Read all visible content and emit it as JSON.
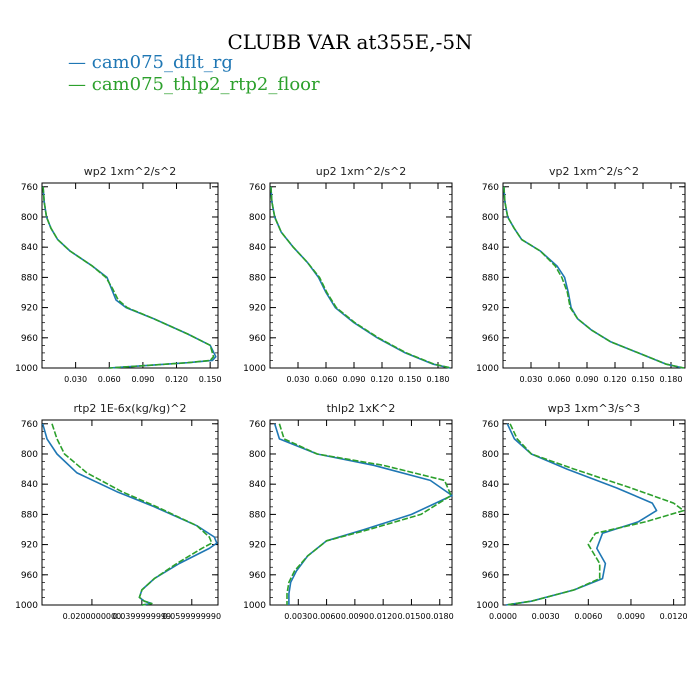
{
  "title": "CLUBB VAR at355E,-5N",
  "legend": {
    "items": [
      {
        "dash": "—",
        "label": "cam075_dflt_rg",
        "color": "#1f77b4"
      },
      {
        "dash": "—",
        "label": "cam075_thlp2_rtp2_floor",
        "color": "#2ca02c"
      }
    ]
  },
  "chart_data": [
    {
      "type": "line",
      "title": "wp2  1xm^2/s^2",
      "xticks": [
        "0.030",
        "0.060",
        "0.090",
        "0.120",
        "0.150"
      ],
      "xtick_values": [
        0.03,
        0.06,
        0.09,
        0.12,
        0.15
      ],
      "xlim": [
        0,
        0.157
      ],
      "yticks": [
        "760",
        "800",
        "840",
        "880",
        "920",
        "960",
        "1000"
      ],
      "ylim": [
        755,
        1000
      ],
      "series": [
        {
          "name": "cam075_dflt_rg",
          "color": "#1f77b4",
          "dashed": false,
          "x": [
            0.001,
            0.002,
            0.004,
            0.008,
            0.014,
            0.025,
            0.045,
            0.058,
            0.062,
            0.066,
            0.075,
            0.1,
            0.13,
            0.15,
            0.155,
            0.152,
            0.13,
            0.06
          ],
          "y": [
            760,
            780,
            800,
            815,
            830,
            845,
            865,
            880,
            895,
            910,
            920,
            935,
            955,
            970,
            985,
            990,
            993,
            1000
          ]
        },
        {
          "name": "cam075_thlp2_rtp2_floor",
          "color": "#2ca02c",
          "dashed": true,
          "x": [
            0.001,
            0.002,
            0.004,
            0.008,
            0.014,
            0.025,
            0.045,
            0.057,
            0.063,
            0.068,
            0.076,
            0.1,
            0.13,
            0.15,
            0.153,
            0.15,
            0.13,
            0.06
          ],
          "y": [
            760,
            780,
            800,
            815,
            830,
            845,
            865,
            880,
            895,
            910,
            920,
            935,
            955,
            970,
            985,
            990,
            993,
            1000
          ]
        }
      ]
    },
    {
      "type": "line",
      "title": "up2  1xm^2/s^2",
      "xticks": [
        "0.030",
        "0.060",
        "0.090",
        "0.120",
        "0.150",
        "0.180"
      ],
      "xtick_values": [
        0.03,
        0.06,
        0.09,
        0.12,
        0.15,
        0.18
      ],
      "xlim": [
        0,
        0.195
      ],
      "yticks": [
        "760",
        "800",
        "840",
        "880",
        "920",
        "960",
        "1000"
      ],
      "ylim": [
        755,
        1000
      ],
      "series": [
        {
          "name": "cam075_dflt_rg",
          "color": "#1f77b4",
          "dashed": false,
          "x": [
            0.001,
            0.002,
            0.005,
            0.012,
            0.025,
            0.04,
            0.052,
            0.06,
            0.07,
            0.09,
            0.115,
            0.145,
            0.175,
            0.193
          ],
          "y": [
            760,
            780,
            800,
            820,
            840,
            860,
            880,
            900,
            920,
            940,
            960,
            980,
            995,
            1000
          ]
        },
        {
          "name": "cam075_thlp2_rtp2_floor",
          "color": "#2ca02c",
          "dashed": true,
          "x": [
            0.001,
            0.002,
            0.005,
            0.012,
            0.025,
            0.04,
            0.053,
            0.061,
            0.071,
            0.091,
            0.116,
            0.146,
            0.176,
            0.194
          ],
          "y": [
            760,
            780,
            800,
            820,
            840,
            860,
            880,
            900,
            920,
            940,
            960,
            980,
            995,
            1000
          ]
        }
      ]
    },
    {
      "type": "line",
      "title": "vp2  1xm^2/s^2",
      "xticks": [
        "0.030",
        "0.060",
        "0.090",
        "0.120",
        "0.150",
        "0.180"
      ],
      "xtick_values": [
        0.03,
        0.06,
        0.09,
        0.12,
        0.15,
        0.18
      ],
      "xlim": [
        0,
        0.195
      ],
      "yticks": [
        "760",
        "800",
        "840",
        "880",
        "920",
        "960",
        "1000"
      ],
      "ylim": [
        755,
        1000
      ],
      "series": [
        {
          "name": "cam075_dflt_rg",
          "color": "#1f77b4",
          "dashed": false,
          "x": [
            0.001,
            0.002,
            0.005,
            0.012,
            0.02,
            0.04,
            0.058,
            0.066,
            0.07,
            0.073,
            0.08,
            0.095,
            0.115,
            0.145,
            0.175,
            0.193
          ],
          "y": [
            760,
            780,
            800,
            815,
            830,
            845,
            865,
            880,
            900,
            920,
            935,
            950,
            965,
            980,
            995,
            1000
          ]
        },
        {
          "name": "cam075_thlp2_rtp2_floor",
          "color": "#2ca02c",
          "dashed": true,
          "x": [
            0.001,
            0.002,
            0.005,
            0.012,
            0.02,
            0.04,
            0.056,
            0.063,
            0.069,
            0.072,
            0.08,
            0.095,
            0.115,
            0.145,
            0.175,
            0.194
          ],
          "y": [
            760,
            780,
            800,
            815,
            830,
            845,
            865,
            880,
            900,
            920,
            935,
            950,
            965,
            980,
            995,
            1000
          ]
        }
      ]
    },
    {
      "type": "line",
      "title": "rtp2  1E-6x(kg/kg)^2",
      "xticks": [
        "0.0200000000",
        "0.0399999999",
        "0.0599999990"
      ],
      "xtick_values": [
        0.02,
        0.04,
        0.06
      ],
      "xlim": [
        0,
        0.0705
      ],
      "yticks": [
        "760",
        "800",
        "840",
        "880",
        "920",
        "960",
        "1000"
      ],
      "ylim": [
        755,
        1000
      ],
      "series": [
        {
          "name": "cam075_dflt_rg",
          "color": "#1f77b4",
          "dashed": false,
          "x": [
            0.0003,
            0.002,
            0.006,
            0.014,
            0.03,
            0.045,
            0.062,
            0.069,
            0.07,
            0.067,
            0.055,
            0.045,
            0.04,
            0.039,
            0.041,
            0.044,
            0.04
          ],
          "y": [
            760,
            780,
            800,
            825,
            850,
            870,
            895,
            910,
            918,
            925,
            945,
            965,
            980,
            990,
            995,
            998,
            1000
          ]
        },
        {
          "name": "cam075_thlp2_rtp2_floor",
          "color": "#2ca02c",
          "dashed": true,
          "x": [
            0.004,
            0.006,
            0.009,
            0.018,
            0.032,
            0.046,
            0.062,
            0.067,
            0.068,
            0.064,
            0.054,
            0.045,
            0.04,
            0.039,
            0.041,
            0.044,
            0.04
          ],
          "y": [
            760,
            780,
            800,
            825,
            850,
            870,
            895,
            910,
            918,
            925,
            945,
            965,
            980,
            990,
            995,
            998,
            1000
          ]
        }
      ]
    },
    {
      "type": "line",
      "title": "thlp2  1xK^2",
      "xticks": [
        "0.0030",
        "0.0060",
        "0.0090",
        "0.0120",
        "0.0150",
        "0.0180"
      ],
      "xtick_values": [
        0.003,
        0.006,
        0.009,
        0.012,
        0.015,
        0.018
      ],
      "xlim": [
        0,
        0.0193
      ],
      "yticks": [
        "760",
        "800",
        "840",
        "880",
        "920",
        "960",
        "1000"
      ],
      "ylim": [
        755,
        1000
      ],
      "series": [
        {
          "name": "cam075_dflt_rg",
          "color": "#1f77b4",
          "dashed": false,
          "x": [
            0.0005,
            0.001,
            0.005,
            0.011,
            0.017,
            0.0193,
            0.015,
            0.01,
            0.006,
            0.004,
            0.0028,
            0.0022,
            0.002,
            0.002
          ],
          "y": [
            760,
            780,
            800,
            815,
            835,
            855,
            880,
            900,
            915,
            935,
            955,
            970,
            985,
            1000
          ]
        },
        {
          "name": "cam075_thlp2_rtp2_floor",
          "color": "#2ca02c",
          "dashed": true,
          "x": [
            0.001,
            0.0015,
            0.005,
            0.012,
            0.0185,
            0.0192,
            0.016,
            0.0105,
            0.006,
            0.004,
            0.0026,
            0.002,
            0.0018,
            0.0018
          ],
          "y": [
            760,
            780,
            800,
            815,
            835,
            855,
            880,
            900,
            915,
            935,
            955,
            970,
            985,
            1000
          ]
        }
      ]
    },
    {
      "type": "line",
      "title": "wp3  1xm^3/s^3",
      "xticks": [
        "0.0000",
        "0.0030",
        "0.0060",
        "0.0090",
        "0.0120"
      ],
      "xtick_values": [
        0.0,
        0.003,
        0.006,
        0.009,
        0.012
      ],
      "xlim": [
        0,
        0.0128
      ],
      "yticks": [
        "760",
        "800",
        "840",
        "880",
        "920",
        "960",
        "1000"
      ],
      "ylim": [
        755,
        1000
      ],
      "series": [
        {
          "name": "cam075_dflt_rg",
          "color": "#1f77b4",
          "dashed": false,
          "x": [
            0.0003,
            0.0008,
            0.002,
            0.0045,
            0.008,
            0.0105,
            0.0108,
            0.0095,
            0.007,
            0.0066,
            0.0072,
            0.007,
            0.005,
            0.002,
            0.0002
          ],
          "y": [
            760,
            780,
            800,
            820,
            845,
            865,
            875,
            890,
            905,
            925,
            945,
            965,
            980,
            995,
            1000
          ]
        },
        {
          "name": "cam075_thlp2_rtp2_floor",
          "color": "#2ca02c",
          "dashed": true,
          "x": [
            0.0005,
            0.001,
            0.002,
            0.005,
            0.009,
            0.012,
            0.0127,
            0.01,
            0.0065,
            0.006,
            0.0068,
            0.0068,
            0.005,
            0.002,
            0.0002
          ],
          "y": [
            760,
            780,
            800,
            820,
            845,
            865,
            875,
            890,
            905,
            920,
            945,
            965,
            980,
            995,
            1000
          ]
        }
      ]
    }
  ]
}
